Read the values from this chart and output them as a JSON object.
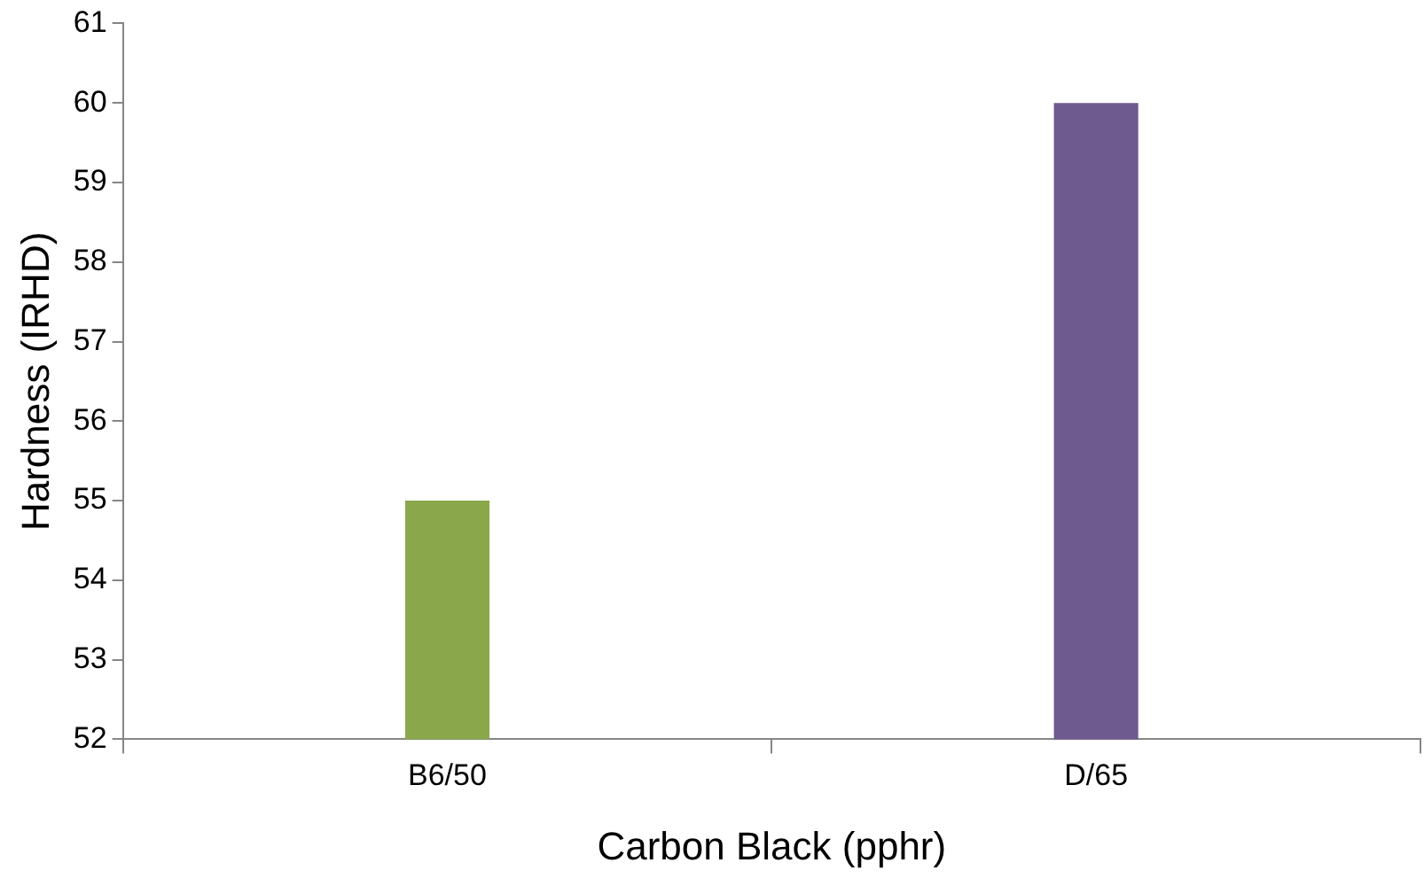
{
  "chart_data": {
    "type": "bar",
    "xlabel": "Carbon Black (pphr)",
    "ylabel": "Hardness (IRHD)",
    "categories": [
      "B6/50",
      "D/65"
    ],
    "values": [
      55,
      60
    ],
    "colors": [
      "#8aa84b",
      "#6f5a8f"
    ],
    "ylim": [
      52,
      61
    ],
    "yticks": [
      52,
      53,
      54,
      55,
      56,
      57,
      58,
      59,
      60,
      61
    ],
    "grid": false,
    "legend": false
  }
}
